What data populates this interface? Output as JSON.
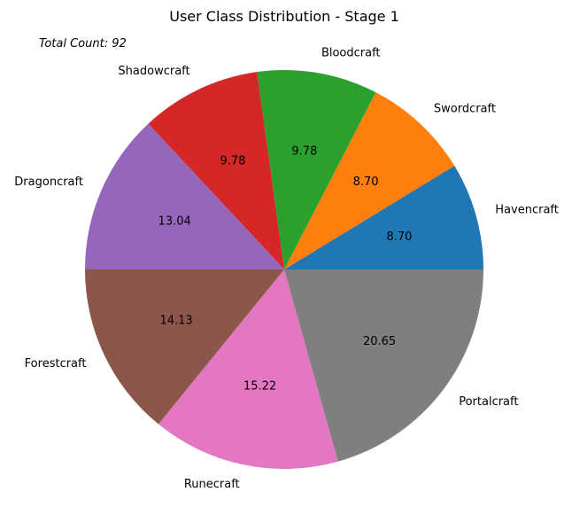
{
  "chart_data": {
    "type": "pie",
    "title": "User Class Distribution - Stage 1",
    "annotation": "Total Count: 92",
    "slices": [
      {
        "label": "Havencraft",
        "value": 8.7,
        "pct_label": "8.70",
        "color": "#1f77b4"
      },
      {
        "label": "Swordcraft",
        "value": 8.7,
        "pct_label": "8.70",
        "color": "#ff7f0e"
      },
      {
        "label": "Bloodcraft",
        "value": 9.78,
        "pct_label": "9.78",
        "color": "#2ca02c"
      },
      {
        "label": "Shadowcraft",
        "value": 9.78,
        "pct_label": "9.78",
        "color": "#d62728"
      },
      {
        "label": "Dragoncraft",
        "value": 13.04,
        "pct_label": "13.04",
        "color": "#9467bd"
      },
      {
        "label": "Forestcraft",
        "value": 14.13,
        "pct_label": "14.13",
        "color": "#8c564b"
      },
      {
        "label": "Runecraft",
        "value": 15.22,
        "pct_label": "15.22",
        "color": "#e377c2"
      },
      {
        "label": "Portalcraft",
        "value": 20.65,
        "pct_label": "20.65",
        "color": "#7f7f7f"
      }
    ],
    "start_angle_deg": 0,
    "direction": "counterclockwise",
    "legend": "none"
  }
}
